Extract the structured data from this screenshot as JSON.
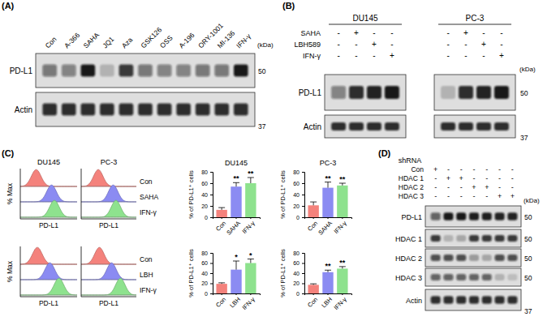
{
  "panel_labels": [
    "(A)",
    "(B)",
    "(C)",
    "(D)"
  ],
  "kda_label": "(kDa)",
  "panel_a": {
    "lanes": [
      "Con",
      "A-366",
      "SAHA",
      "JQ1",
      "Aza",
      "GSK126",
      "OSS",
      "A-196",
      "ORY-1001",
      "MI-136",
      "IFN-γ"
    ],
    "blots": [
      {
        "label": "PD-L1",
        "marker": 50,
        "intensity": [
          0.5,
          0.45,
          0.95,
          0.2,
          0.8,
          0.5,
          0.45,
          0.45,
          0.5,
          0.5,
          0.95
        ]
      },
      {
        "label": "Actin",
        "marker": 37,
        "intensity": [
          0.85,
          0.85,
          0.85,
          0.85,
          0.85,
          0.85,
          0.85,
          0.85,
          0.85,
          0.85,
          0.85
        ]
      }
    ]
  },
  "panel_b": {
    "treatments": [
      "SAHA",
      "LBH589",
      "IFN-γ"
    ],
    "groups": [
      {
        "name": "DU145",
        "signs": [
          [
            "-",
            "+",
            "-",
            "-"
          ],
          [
            "-",
            "-",
            "+",
            "-"
          ],
          [
            "-",
            "-",
            "-",
            "+"
          ]
        ]
      },
      {
        "name": "PC-3",
        "signs": [
          [
            "-",
            "+",
            "-",
            "-"
          ],
          [
            "-",
            "-",
            "+",
            "-"
          ],
          [
            "-",
            "-",
            "-",
            "+"
          ]
        ]
      }
    ],
    "blots": [
      {
        "label": "PD-L1",
        "marker": 50,
        "intensity": [
          0.45,
          0.85,
          0.9,
          0.95,
          0.2,
          0.85,
          0.9,
          0.95
        ]
      },
      {
        "label": "Actin",
        "marker": 37,
        "intensity": [
          0.85,
          0.85,
          0.85,
          0.85,
          0.85,
          0.85,
          0.85,
          0.85
        ]
      }
    ]
  },
  "panel_c": {
    "flow": [
      {
        "titles": [
          "DU145",
          "PC-3"
        ],
        "ylabel": "% Max",
        "xlabel": "PD-L1",
        "curves": [
          {
            "name": "Con",
            "color": "#f4827c"
          },
          {
            "name": "SAHA",
            "color": "#8b8bf2"
          },
          {
            "name": "IFN-γ",
            "color": "#8ee28e"
          }
        ]
      },
      {
        "ylabel": "% Max",
        "xlabel": "PD-L1",
        "curves": [
          {
            "name": "Con",
            "color": "#f4827c"
          },
          {
            "name": "LBH",
            "color": "#8b8bf2"
          },
          {
            "name": "IFN-γ",
            "color": "#8ee28e"
          }
        ]
      }
    ]
  },
  "chart_data": [
    {
      "type": "bar",
      "title": "DU145",
      "ylabel": "% of PD-L1⁺ cells",
      "categories": [
        "Con",
        "SAHA",
        "IFN-γ"
      ],
      "values": [
        13,
        54,
        60
      ],
      "errors": [
        4,
        7,
        10
      ],
      "significance": [
        null,
        "**",
        "**"
      ],
      "colors": [
        "#f4827c",
        "#8b8bf2",
        "#8ee28e"
      ],
      "ylim": [
        0,
        80
      ],
      "yticks": [
        0,
        20,
        40,
        60,
        80
      ]
    },
    {
      "type": "bar",
      "title": "PC-3",
      "ylabel": "% of PD-L1⁺ cells",
      "categories": [
        "Con",
        "SAHA",
        "IFN-γ"
      ],
      "values": [
        21,
        52,
        56
      ],
      "errors": [
        6,
        10,
        4
      ],
      "significance": [
        null,
        "**",
        "**"
      ],
      "colors": [
        "#f4827c",
        "#8b8bf2",
        "#8ee28e"
      ],
      "ylim": [
        0,
        80
      ],
      "yticks": [
        0,
        20,
        40,
        60,
        80
      ]
    },
    {
      "type": "bar",
      "ylabel": "% of PD-L1⁺ cells",
      "categories": [
        "Con",
        "LBH",
        "IFN-γ"
      ],
      "values": [
        19,
        47,
        60
      ],
      "errors": [
        2,
        17,
        8
      ],
      "significance": [
        null,
        "*",
        "*"
      ],
      "colors": [
        "#f4827c",
        "#8b8bf2",
        "#8ee28e"
      ],
      "ylim": [
        0,
        80
      ],
      "yticks": [
        0,
        20,
        40,
        60,
        80
      ]
    },
    {
      "type": "bar",
      "ylabel": "% of PD-L1⁺ cells",
      "categories": [
        "Con",
        "LBH",
        "IFN-γ"
      ],
      "values": [
        17,
        42,
        49
      ],
      "errors": [
        2,
        4,
        4
      ],
      "significance": [
        null,
        "**",
        "**"
      ],
      "colors": [
        "#f4827c",
        "#8b8bf2",
        "#8ee28e"
      ],
      "ylim": [
        0,
        80
      ],
      "yticks": [
        0,
        20,
        40,
        60,
        80
      ]
    }
  ],
  "panel_d": {
    "header": "shRNA",
    "rows": [
      {
        "name": "Con",
        "signs": [
          "+",
          "-",
          "-",
          "-",
          "-",
          "-",
          "-"
        ]
      },
      {
        "name": "HDAC 1",
        "signs": [
          "-",
          "+",
          "+",
          "-",
          "-",
          "-",
          "-"
        ]
      },
      {
        "name": "HDAC 2",
        "signs": [
          "-",
          "-",
          "-",
          "+",
          "+",
          "-",
          "-"
        ]
      },
      {
        "name": "HDAC 3",
        "signs": [
          "-",
          "-",
          "-",
          "-",
          "-",
          "+",
          "+"
        ]
      }
    ],
    "blots": [
      {
        "label": "PD-L1",
        "marker": 50,
        "intensity": [
          0.6,
          0.95,
          0.95,
          0.92,
          0.92,
          0.9,
          0.9
        ]
      },
      {
        "label": "HDAC 1",
        "marker": 50,
        "intensity": [
          0.8,
          0.2,
          0.25,
          0.8,
          0.8,
          0.8,
          0.8
        ]
      },
      {
        "label": "HDAC 2",
        "marker": 50,
        "intensity": [
          0.7,
          0.7,
          0.7,
          0.3,
          0.25,
          0.7,
          0.7
        ]
      },
      {
        "label": "HDAC 3",
        "marker": 50,
        "intensity": [
          0.6,
          0.6,
          0.6,
          0.6,
          0.6,
          0.2,
          0.15
        ]
      },
      {
        "label": "Actin",
        "marker": 37,
        "intensity": [
          0.85,
          0.85,
          0.85,
          0.85,
          0.85,
          0.85,
          0.85
        ]
      }
    ]
  }
}
